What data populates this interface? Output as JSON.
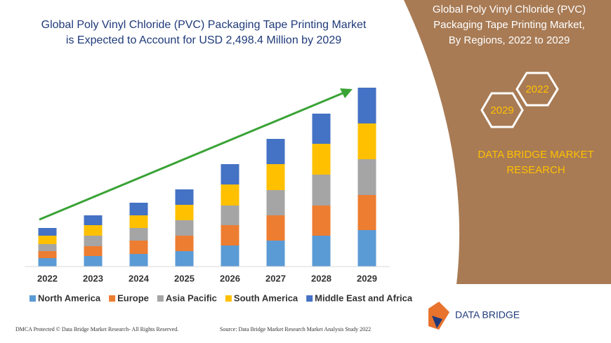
{
  "chart_data": {
    "type": "stacked_bar",
    "title": [
      "Global Poly Vinyl Chloride (PVC) Packaging Tape Printing Market",
      "is Expected to Account for USD 2,498.4 Million by 2029"
    ],
    "categories": [
      "2022",
      "2023",
      "2024",
      "2025",
      "2026",
      "2027",
      "2028",
      "2029"
    ],
    "series": [
      {
        "name": "North America",
        "color": "#5b9bd5",
        "values": [
          12,
          15,
          18,
          22,
          30,
          37,
          44,
          52
        ]
      },
      {
        "name": "Europe",
        "color": "#ed7d31",
        "values": [
          10,
          14,
          19,
          22,
          29,
          36,
          43,
          50
        ]
      },
      {
        "name": "Asia Pacific",
        "color": "#a5a5a5",
        "values": [
          10,
          15,
          18,
          22,
          28,
          36,
          44,
          51
        ]
      },
      {
        "name": "South America",
        "color": "#ffc000",
        "values": [
          12,
          15,
          18,
          22,
          30,
          37,
          44,
          51
        ]
      },
      {
        "name": "Middle East and Africa",
        "color": "#4472c4",
        "values": [
          11,
          14,
          18,
          22,
          29,
          36,
          43,
          51
        ]
      }
    ]
  },
  "panel": {
    "title": [
      "Global Poly Vinyl Chloride (PVC)",
      "Packaging Tape Printing Market,",
      "By Regions, 2022 to 2029"
    ],
    "hexagons": [
      "2022",
      "2029"
    ],
    "brand": [
      "DATA BRIDGE MARKET",
      "RESEARCH"
    ]
  },
  "logo": {
    "name": "DATA BRIDGE"
  },
  "footer": {
    "left": "DMCA Protected © Data Bridge Market Research- All Rights Reserved.",
    "right": "Source: Data Bridge Market Research Market Analysis Study 2022"
  }
}
